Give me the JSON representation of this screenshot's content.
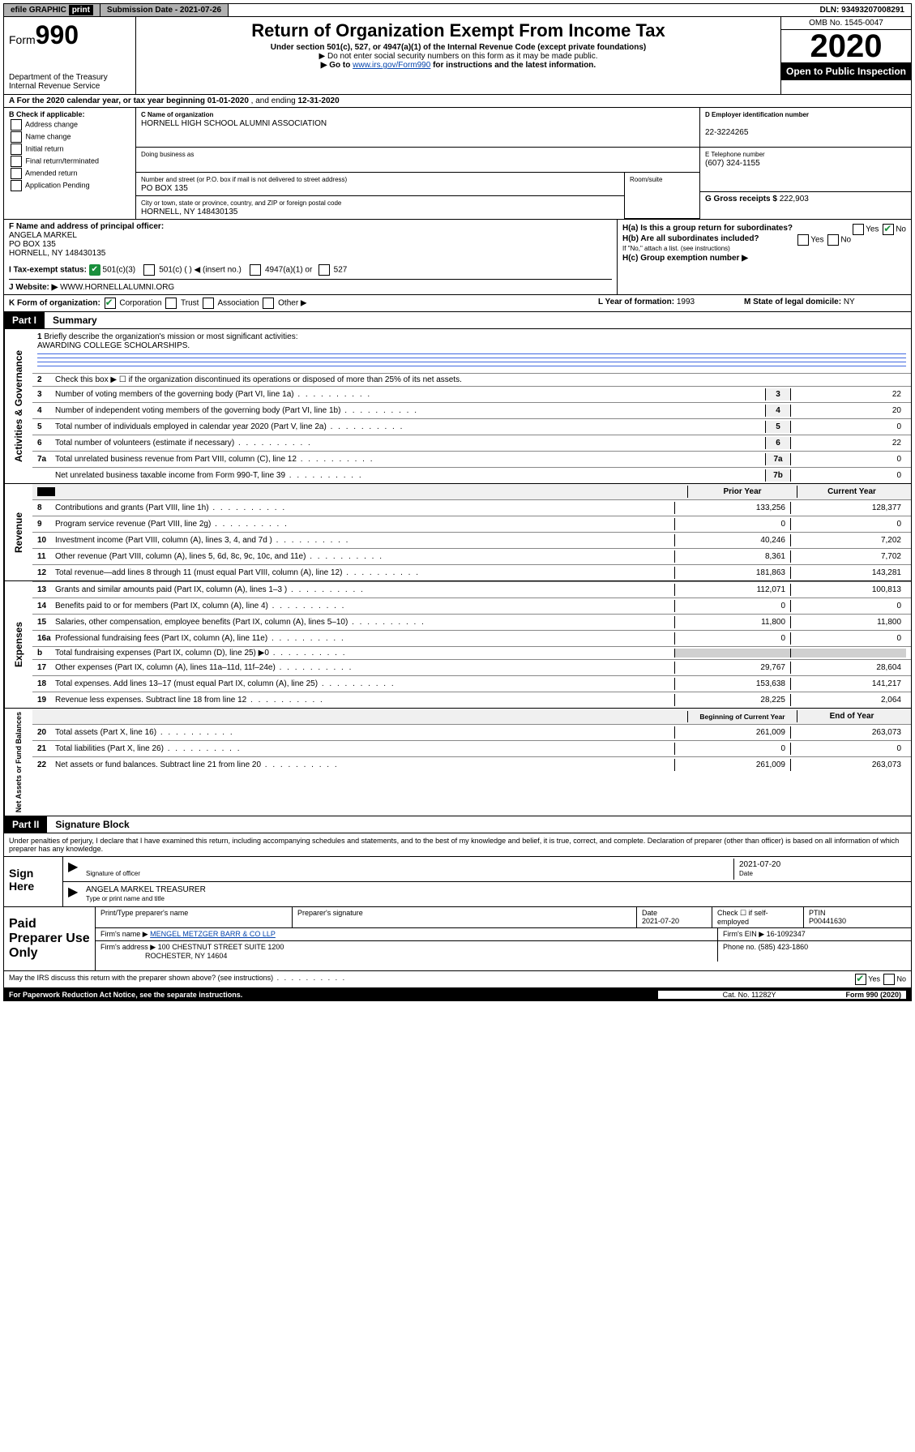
{
  "top": {
    "efile_label": "efile GRAPHIC",
    "print_label": "print",
    "submission_label": "Submission Date - 2021-07-26",
    "dln": "DLN: 93493207008291"
  },
  "header": {
    "form_label": "Form",
    "form_number": "990",
    "title": "Return of Organization Exempt From Income Tax",
    "subtitle": "Under section 501(c), 527, or 4947(a)(1) of the Internal Revenue Code (except private foundations)",
    "note1": "▶ Do not enter social security numbers on this form as it may be made public.",
    "note2_pre": "▶ Go to ",
    "note2_link": "www.irs.gov/Form990",
    "note2_post": " for instructions and the latest information.",
    "dept": "Department of the Treasury\nInternal Revenue Service",
    "omb": "OMB No. 1545-0047",
    "year": "2020",
    "open_public": "Open to Public Inspection"
  },
  "section_a": {
    "text_pre": "A For the 2020 calendar year, or tax year beginning ",
    "begin": "01-01-2020",
    "text_mid": " , and ending ",
    "end": "12-31-2020"
  },
  "section_b": {
    "label": "B Check if applicable:",
    "options": [
      "Address change",
      "Name change",
      "Initial return",
      "Final return/terminated",
      "Amended return",
      "Application Pending"
    ]
  },
  "section_c": {
    "name_label": "C Name of organization",
    "name": "HORNELL HIGH SCHOOL ALUMNI ASSOCIATION",
    "dba_label": "Doing business as",
    "dba": "",
    "street_label": "Number and street (or P.O. box if mail is not delivered to street address)",
    "street": "PO BOX 135",
    "room_label": "Room/suite",
    "city_label": "City or town, state or province, country, and ZIP or foreign postal code",
    "city": "HORNELL, NY  148430135"
  },
  "section_d": {
    "label": "D Employer identification number",
    "value": "22-3224265"
  },
  "section_e": {
    "label": "E Telephone number",
    "value": "(607) 324-1155"
  },
  "section_g": {
    "label": "G Gross receipts $",
    "value": "222,903"
  },
  "section_f": {
    "label": "F  Name and address of principal officer:",
    "name": "ANGELA MARKEL",
    "street": "PO BOX 135",
    "city": "HORNELL, NY  148430135"
  },
  "section_h": {
    "ha": "H(a)  Is this a group return for subordinates?",
    "hb": "H(b)  Are all subordinates included?",
    "hb_note": "If \"No,\" attach a list. (see instructions)",
    "hc": "H(c)  Group exemption number ▶"
  },
  "section_i": {
    "label": "I     Tax-exempt status:",
    "opt1": "501(c)(3)",
    "opt2": "501(c) (   ) ◀ (insert no.)",
    "opt3": "4947(a)(1) or",
    "opt4": "527"
  },
  "section_j": {
    "label": "J     Website: ▶",
    "value": "WWW.HORNELLALUMNI.ORG"
  },
  "section_k": {
    "label": "K Form of organization:",
    "opts": [
      "Corporation",
      "Trust",
      "Association",
      "Other ▶"
    ]
  },
  "section_l": {
    "label": "L Year of formation:",
    "value": "1993"
  },
  "section_m": {
    "label": "M State of legal domicile:",
    "value": "NY"
  },
  "part1": {
    "num": "Part I",
    "title": "Summary",
    "vlabel1": "Activities & Governance",
    "vlabel2": "Revenue",
    "vlabel3": "Expenses",
    "vlabel4": "Net Assets or Fund Balances",
    "line1_label": "Briefly describe the organization's mission or most significant activities:",
    "line1_value": "AWARDING COLLEGE SCHOLARSHIPS.",
    "line2": "Check this box ▶ ☐  if the organization discontinued its operations or disposed of more than 25% of its net assets.",
    "rows_gov": [
      {
        "n": "3",
        "t": "Number of voting members of the governing body (Part VI, line 1a)",
        "box": "3",
        "v": "22"
      },
      {
        "n": "4",
        "t": "Number of independent voting members of the governing body (Part VI, line 1b)",
        "box": "4",
        "v": "20"
      },
      {
        "n": "5",
        "t": "Total number of individuals employed in calendar year 2020 (Part V, line 2a)",
        "box": "5",
        "v": "0"
      },
      {
        "n": "6",
        "t": "Total number of volunteers (estimate if necessary)",
        "box": "6",
        "v": "22"
      },
      {
        "n": "7a",
        "t": "Total unrelated business revenue from Part VIII, column (C), line 12",
        "box": "7a",
        "v": "0"
      },
      {
        "n": "",
        "t": "Net unrelated business taxable income from Form 990-T, line 39",
        "box": "7b",
        "v": "0"
      }
    ],
    "py_header": "Prior Year",
    "cy_header": "Current Year",
    "rows_rev": [
      {
        "n": "8",
        "t": "Contributions and grants (Part VIII, line 1h)",
        "py": "133,256",
        "cy": "128,377"
      },
      {
        "n": "9",
        "t": "Program service revenue (Part VIII, line 2g)",
        "py": "0",
        "cy": "0"
      },
      {
        "n": "10",
        "t": "Investment income (Part VIII, column (A), lines 3, 4, and 7d )",
        "py": "40,246",
        "cy": "7,202"
      },
      {
        "n": "11",
        "t": "Other revenue (Part VIII, column (A), lines 5, 6d, 8c, 9c, 10c, and 11e)",
        "py": "8,361",
        "cy": "7,702"
      },
      {
        "n": "12",
        "t": "Total revenue—add lines 8 through 11 (must equal Part VIII, column (A), line 12)",
        "py": "181,863",
        "cy": "143,281"
      }
    ],
    "rows_exp": [
      {
        "n": "13",
        "t": "Grants and similar amounts paid (Part IX, column (A), lines 1–3 )",
        "py": "112,071",
        "cy": "100,813"
      },
      {
        "n": "14",
        "t": "Benefits paid to or for members (Part IX, column (A), line 4)",
        "py": "0",
        "cy": "0"
      },
      {
        "n": "15",
        "t": "Salaries, other compensation, employee benefits (Part IX, column (A), lines 5–10)",
        "py": "11,800",
        "cy": "11,800"
      },
      {
        "n": "16a",
        "t": "Professional fundraising fees (Part IX, column (A), line 11e)",
        "py": "0",
        "cy": "0"
      },
      {
        "n": "b",
        "t": "Total fundraising expenses (Part IX, column (D), line 25) ▶0",
        "py": "",
        "cy": "",
        "shaded": true
      },
      {
        "n": "17",
        "t": "Other expenses (Part IX, column (A), lines 11a–11d, 11f–24e)",
        "py": "29,767",
        "cy": "28,604"
      },
      {
        "n": "18",
        "t": "Total expenses. Add lines 13–17 (must equal Part IX, column (A), line 25)",
        "py": "153,638",
        "cy": "141,217"
      },
      {
        "n": "19",
        "t": "Revenue less expenses. Subtract line 18 from line 12",
        "py": "28,225",
        "cy": "2,064"
      }
    ],
    "boy_header": "Beginning of Current Year",
    "eoy_header": "End of Year",
    "rows_net": [
      {
        "n": "20",
        "t": "Total assets (Part X, line 16)",
        "py": "261,009",
        "cy": "263,073"
      },
      {
        "n": "21",
        "t": "Total liabilities (Part X, line 26)",
        "py": "0",
        "cy": "0"
      },
      {
        "n": "22",
        "t": "Net assets or fund balances. Subtract line 21 from line 20",
        "py": "261,009",
        "cy": "263,073"
      }
    ]
  },
  "part2": {
    "num": "Part II",
    "title": "Signature Block",
    "declaration": "Under penalties of perjury, I declare that I have examined this return, including accompanying schedules and statements, and to the best of my knowledge and belief, it is true, correct, and complete. Declaration of preparer (other than officer) is based on all information of which preparer has any knowledge."
  },
  "sign": {
    "label": "Sign Here",
    "sig_label": "Signature of officer",
    "date": "2021-07-20",
    "date_label": "Date",
    "name": "ANGELA MARKEL  TREASURER",
    "name_label": "Type or print name and title"
  },
  "paid": {
    "label": "Paid Preparer Use Only",
    "col1": "Print/Type preparer's name",
    "col2": "Preparer's signature",
    "col3": "Date",
    "col3_val": "2021-07-20",
    "col4": "Check ☐ if self-employed",
    "col5": "PTIN",
    "ptin": "P00441630",
    "firm_name_label": "Firm's name    ▶",
    "firm_name": "MENGEL METZGER BARR & CO LLP",
    "firm_ein_label": "Firm's EIN ▶",
    "firm_ein": "16-1092347",
    "firm_addr_label": "Firm's address ▶",
    "firm_addr": "100 CHESTNUT STREET SUITE 1200",
    "firm_city": "ROCHESTER, NY  14604",
    "phone_label": "Phone no.",
    "phone": "(585) 423-1860"
  },
  "footer": {
    "discuss": "May the IRS discuss this return with the preparer shown above? (see instructions)",
    "paperwork": "For Paperwork Reduction Act Notice, see the separate instructions.",
    "cat": "Cat. No. 11282Y",
    "form": "Form 990 (2020)"
  }
}
